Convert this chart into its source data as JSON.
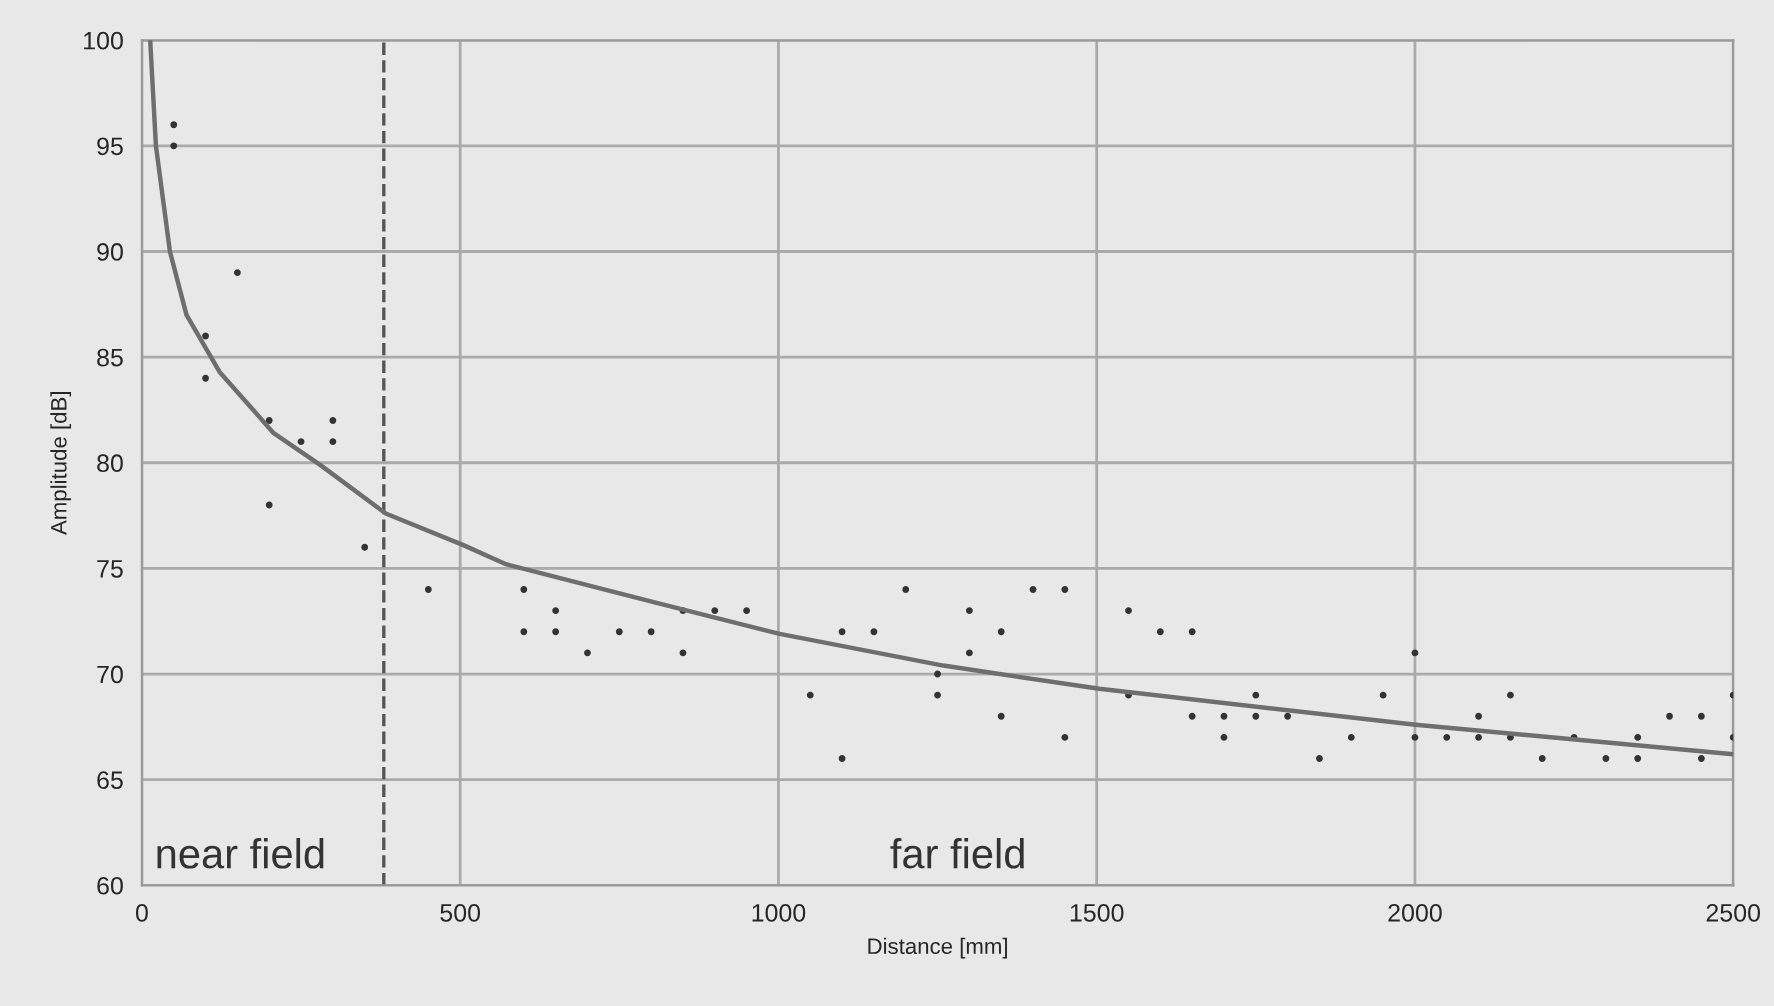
{
  "chart_data": {
    "type": "scatter",
    "xlabel": "Distance [mm]",
    "ylabel": "Amplitude [dB]",
    "xlim": [
      0,
      2500
    ],
    "ylim": [
      60,
      100
    ],
    "xticks": [
      0,
      500,
      1000,
      1500,
      2000,
      2500
    ],
    "yticks": [
      60,
      65,
      70,
      75,
      80,
      85,
      90,
      95,
      100
    ],
    "grid": true,
    "series": [
      {
        "marker": "circle",
        "color": "#333333",
        "x": [
          50,
          50,
          150,
          100,
          100,
          200,
          300,
          250,
          300,
          200,
          350,
          450,
          600,
          650,
          600,
          650,
          700,
          750,
          800,
          850,
          850,
          900,
          950,
          1050,
          1100,
          1100,
          1150,
          1200,
          1250,
          1250,
          1300,
          1300,
          1350,
          1350,
          1400,
          1450,
          1450,
          1550,
          1550,
          1600,
          1650,
          1650,
          1700,
          1700,
          1750,
          1750,
          1800,
          1850,
          1900,
          1950,
          2000,
          2000,
          2050,
          2100,
          2100,
          2150,
          2150,
          2200,
          2250,
          2300,
          2350,
          2350,
          2400,
          2450,
          2450,
          2500,
          2500
        ],
        "values": [
          96,
          95,
          89,
          86,
          84,
          82,
          82,
          81,
          81,
          78,
          76,
          74,
          74,
          73,
          72,
          72,
          71,
          72,
          72,
          73,
          71,
          73,
          73,
          69,
          72,
          66,
          72,
          74,
          69,
          70,
          73,
          71,
          72,
          68,
          74,
          74,
          67,
          73,
          69,
          72,
          72,
          68,
          68,
          67,
          69,
          68,
          68,
          66,
          67,
          69,
          71,
          67,
          67,
          68,
          67,
          69,
          67,
          66,
          67,
          66,
          67,
          66,
          68,
          68,
          66,
          69,
          67
        ]
      },
      {
        "type": "line",
        "line_style": "solid",
        "color": "#6e6e6e",
        "x": [
          13,
          22,
          44,
          70,
          122,
          207,
          280,
          383,
          505,
          572,
          804,
          1002,
          1259,
          1504,
          2001,
          2500
        ],
        "values": [
          100,
          95,
          90,
          87,
          84.3,
          81.4,
          79.9,
          77.6,
          76.1,
          75.2,
          73.4,
          71.9,
          70.4,
          69.3,
          67.6,
          66.2
        ]
      }
    ],
    "ref_lines": [
      {
        "axis": "x",
        "value": 380,
        "line_style": "dashed",
        "color": "#555555"
      }
    ],
    "annotations": [
      "near field",
      "far field"
    ]
  }
}
